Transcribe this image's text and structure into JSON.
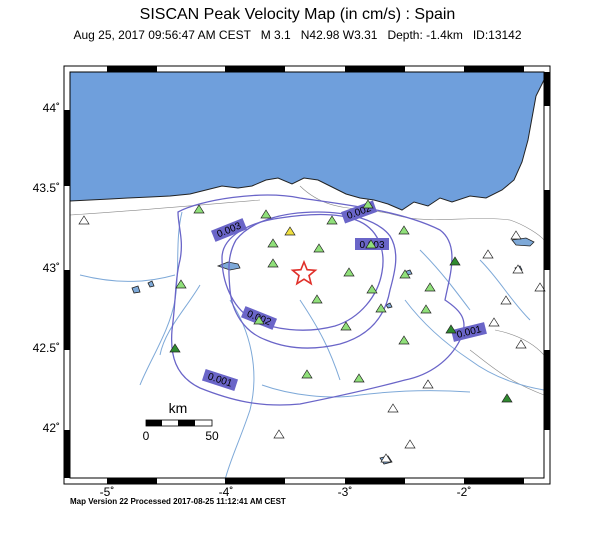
{
  "header": {
    "title": "SISCAN Peak Velocity Map (in cm/s) : Spain",
    "subtitle": "Aug 25, 2017 09:56:47 AM CEST   M 3.1   N42.98 W3.31   Depth: -1.4km   ID:13142"
  },
  "axes": {
    "y_labels": [
      "44˚",
      "43.5˚",
      "43˚",
      "42.5˚",
      "42˚"
    ],
    "x_labels": [
      "-5˚",
      "-4˚",
      "-3˚",
      "-2˚"
    ]
  },
  "scale_bar": {
    "unit": "km",
    "start": "0",
    "end": "50"
  },
  "contours": {
    "labels": [
      "0.003",
      "0.002",
      "0.003",
      "0.002",
      "0.001",
      "0.001"
    ],
    "color": "#6a65c8"
  },
  "epicenter": {
    "symbol": "star",
    "color": "#e0302a"
  },
  "colors": {
    "sea": "#6f9fdc",
    "river": "#7ea9d8",
    "station_green": "#90e07a",
    "station_dark": "#2f8a2f",
    "station_yellow": "#f0e040"
  },
  "footer": {
    "text": "Map Version 22 Processed 2017-08-25 11:12:41 AM CEST"
  }
}
